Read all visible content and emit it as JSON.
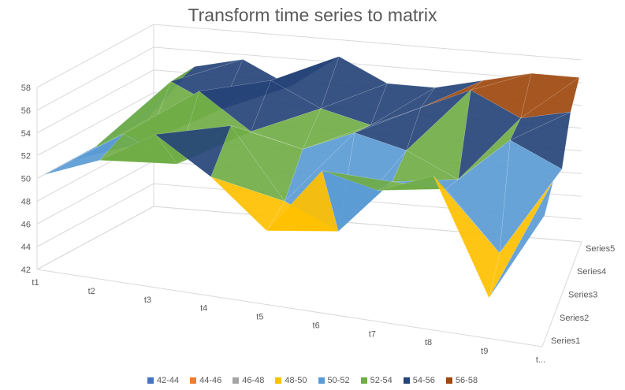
{
  "chart_data": {
    "type": "surface-3d",
    "title": "Transform time series to matrix",
    "z_ticks": [
      "42",
      "44",
      "46",
      "48",
      "50",
      "52",
      "54",
      "56",
      "58"
    ],
    "zlim": [
      42,
      58
    ],
    "x": [
      "t1",
      "t2",
      "t3",
      "t4",
      "t5",
      "t6",
      "t7",
      "t8",
      "t9",
      "t..."
    ],
    "series_names": [
      "Series1",
      "Series2",
      "Series3",
      "Series4",
      "Series5"
    ],
    "values": [
      [
        50,
        52,
        55,
        52,
        48,
        54,
        53,
        55,
        45,
        53
      ],
      [
        50,
        53,
        51,
        55,
        49,
        47,
        52,
        52,
        47,
        54
      ],
      [
        50,
        51,
        56,
        53,
        52,
        54,
        53,
        51,
        55,
        53
      ],
      [
        50,
        55,
        53,
        56,
        54,
        53,
        55,
        57,
        55,
        56
      ],
      [
        50,
        55,
        56,
        54,
        57,
        55,
        55,
        56,
        57,
        57
      ]
    ],
    "bands": [
      {
        "label": "42-44",
        "color": "#4472C4"
      },
      {
        "label": "44-46",
        "color": "#ED7D31"
      },
      {
        "label": "46-48",
        "color": "#A5A5A5"
      },
      {
        "label": "48-50",
        "color": "#FFC000"
      },
      {
        "label": "50-52",
        "color": "#5B9BD5"
      },
      {
        "label": "52-54",
        "color": "#70AD47"
      },
      {
        "label": "54-56",
        "color": "#264478"
      },
      {
        "label": "56-58",
        "color": "#9E480E"
      }
    ]
  }
}
